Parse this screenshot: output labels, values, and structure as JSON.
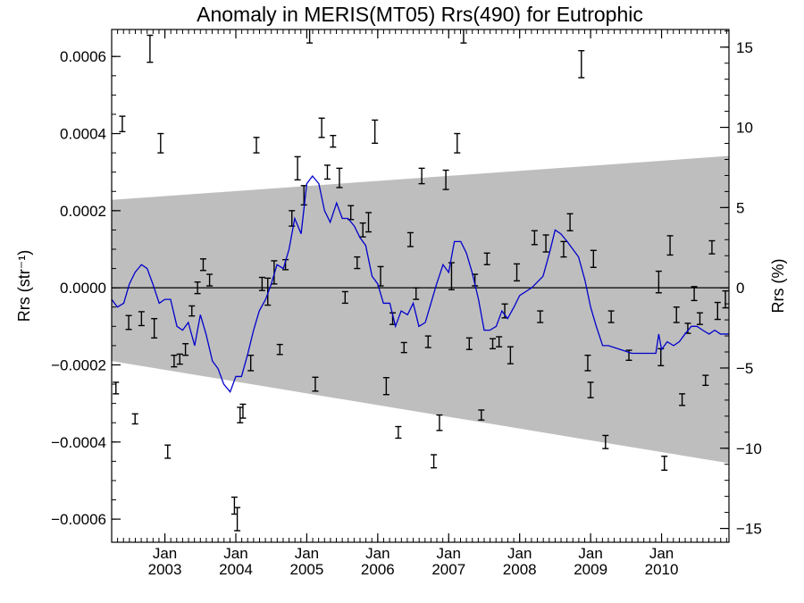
{
  "chart_data": {
    "type": "line",
    "title": "Anomaly in MERIS(MT05) Rrs(490) for Eutrophic",
    "ylabel_left": "Rrs (str⁻¹)",
    "ylabel_right": "Rrs (%)",
    "xlabel": "",
    "xlim": [
      2002.25,
      2010.95
    ],
    "ylim": [
      -0.00066,
      0.00067
    ],
    "ylim_right": [
      -15.86,
      16.1
    ],
    "grid": false,
    "legend": "none",
    "x_ticks": [
      {
        "x": 2003.0,
        "month": "Jan",
        "year": "2003"
      },
      {
        "x": 2004.0,
        "month": "Jan",
        "year": "2004"
      },
      {
        "x": 2005.0,
        "month": "Jan",
        "year": "2005"
      },
      {
        "x": 2006.0,
        "month": "Jan",
        "year": "2006"
      },
      {
        "x": 2007.0,
        "month": "Jan",
        "year": "2007"
      },
      {
        "x": 2008.0,
        "month": "Jan",
        "year": "2008"
      },
      {
        "x": 2009.0,
        "month": "Jan",
        "year": "2009"
      },
      {
        "x": 2010.0,
        "month": "Jan",
        "year": "2010"
      }
    ],
    "y_ticks_left": [
      {
        "v": 0.0006,
        "label": "0.0006"
      },
      {
        "v": 0.0004,
        "label": "0.0004"
      },
      {
        "v": 0.0002,
        "label": "0.0002"
      },
      {
        "v": 0.0,
        "label": "0.0000"
      },
      {
        "v": -0.0002,
        "label": "−0.0002"
      },
      {
        "v": -0.0004,
        "label": "−0.0004"
      },
      {
        "v": -0.0006,
        "label": "−0.0006"
      }
    ],
    "y_ticks_right": [
      {
        "v": 15,
        "label": "15"
      },
      {
        "v": 10,
        "label": "10"
      },
      {
        "v": 5,
        "label": "5"
      },
      {
        "v": 0,
        "label": "0"
      },
      {
        "v": -5,
        "label": "−5"
      },
      {
        "v": -10,
        "label": "−10"
      },
      {
        "v": -15,
        "label": "−15"
      }
    ],
    "band": {
      "color": "#bebebe",
      "upper": [
        [
          2002.25,
          0.000228
        ],
        [
          2010.95,
          0.000342
        ]
      ],
      "lower": [
        [
          2002.25,
          -0.00019
        ],
        [
          2010.95,
          -0.000455
        ]
      ]
    },
    "zero_line": true,
    "series": [
      {
        "color": "#0000cc",
        "points": [
          [
            2002.25,
            -3e-05
          ],
          [
            2002.33,
            -5e-05
          ],
          [
            2002.42,
            -4e-05
          ],
          [
            2002.5,
            1e-05
          ],
          [
            2002.58,
            4e-05
          ],
          [
            2002.67,
            6e-05
          ],
          [
            2002.75,
            5e-05
          ],
          [
            2002.83,
            1e-05
          ],
          [
            2002.92,
            -4e-05
          ],
          [
            2003.0,
            -3e-05
          ],
          [
            2003.08,
            -3e-05
          ],
          [
            2003.17,
            -0.0001
          ],
          [
            2003.25,
            -0.00011
          ],
          [
            2003.33,
            -9e-05
          ],
          [
            2003.42,
            -0.00015
          ],
          [
            2003.5,
            -7e-05
          ],
          [
            2003.58,
            -0.00012
          ],
          [
            2003.67,
            -0.00019
          ],
          [
            2003.75,
            -0.00021
          ],
          [
            2003.83,
            -0.00025
          ],
          [
            2003.92,
            -0.00027
          ],
          [
            2004.0,
            -0.00023
          ],
          [
            2004.08,
            -0.00023
          ],
          [
            2004.17,
            -0.00017
          ],
          [
            2004.25,
            -0.00011
          ],
          [
            2004.33,
            -6e-05
          ],
          [
            2004.42,
            -3e-05
          ],
          [
            2004.5,
            1e-05
          ],
          [
            2004.58,
            6e-05
          ],
          [
            2004.67,
            5e-05
          ],
          [
            2004.75,
            0.0001
          ],
          [
            2004.83,
            0.00018
          ],
          [
            2004.92,
            0.00014
          ],
          [
            2005.0,
            0.00027
          ],
          [
            2005.08,
            0.00029
          ],
          [
            2005.17,
            0.00027
          ],
          [
            2005.25,
            0.0002
          ],
          [
            2005.33,
            0.00017
          ],
          [
            2005.42,
            0.00022
          ],
          [
            2005.5,
            0.00018
          ],
          [
            2005.58,
            0.00018
          ],
          [
            2005.67,
            0.00016
          ],
          [
            2005.75,
            0.00013
          ],
          [
            2005.83,
            0.00011
          ],
          [
            2005.92,
            3e-05
          ],
          [
            2006.0,
            1e-05
          ],
          [
            2006.08,
            -4e-05
          ],
          [
            2006.17,
            -4e-05
          ],
          [
            2006.25,
            -0.0001
          ],
          [
            2006.33,
            -6e-05
          ],
          [
            2006.42,
            -7e-05
          ],
          [
            2006.5,
            -4e-05
          ],
          [
            2006.58,
            -0.0001
          ],
          [
            2006.67,
            -9e-05
          ],
          [
            2006.75,
            -4e-05
          ],
          [
            2006.83,
            1e-05
          ],
          [
            2006.92,
            6e-05
          ],
          [
            2007.0,
            4e-05
          ],
          [
            2007.08,
            0.00012
          ],
          [
            2007.17,
            0.00012
          ],
          [
            2007.25,
            9e-05
          ],
          [
            2007.33,
            4e-05
          ],
          [
            2007.42,
            -3e-05
          ],
          [
            2007.5,
            -0.00011
          ],
          [
            2007.58,
            -0.00011
          ],
          [
            2007.67,
            -0.0001
          ],
          [
            2007.75,
            -6e-05
          ],
          [
            2007.83,
            -8e-05
          ],
          [
            2007.92,
            -5e-05
          ],
          [
            2008.0,
            -2e-05
          ],
          [
            2008.17,
            0.0
          ],
          [
            2008.33,
            3e-05
          ],
          [
            2008.42,
            9e-05
          ],
          [
            2008.5,
            0.00015
          ],
          [
            2008.58,
            0.00014
          ],
          [
            2008.67,
            0.00012
          ],
          [
            2008.75,
            0.0001
          ],
          [
            2008.83,
            8e-05
          ],
          [
            2008.92,
            2e-05
          ],
          [
            2009.0,
            -5e-05
          ],
          [
            2009.08,
            -0.0001
          ],
          [
            2009.17,
            -0.00015
          ],
          [
            2009.25,
            -0.00015
          ],
          [
            2009.42,
            -0.00016
          ],
          [
            2009.58,
            -0.00017
          ],
          [
            2009.75,
            -0.00017
          ],
          [
            2009.92,
            -0.00017
          ],
          [
            2009.96,
            -0.00012
          ],
          [
            2010.0,
            -0.00016
          ],
          [
            2010.08,
            -0.00014
          ],
          [
            2010.17,
            -0.00015
          ],
          [
            2010.25,
            -0.00014
          ],
          [
            2010.33,
            -0.00012
          ],
          [
            2010.42,
            -0.0001
          ],
          [
            2010.5,
            -0.0001
          ],
          [
            2010.58,
            -0.00011
          ],
          [
            2010.67,
            -0.00012
          ],
          [
            2010.75,
            -0.00011
          ],
          [
            2010.83,
            -0.00012
          ],
          [
            2010.95,
            -0.00012
          ]
        ]
      }
    ],
    "errorbar_color": "#000000",
    "errorbars": [
      [
        2002.31,
        -0.00026,
        1.5e-05
      ],
      [
        2002.4,
        0.000425,
        2e-05
      ],
      [
        2002.49,
        -9e-05,
        1.8e-05
      ],
      [
        2002.58,
        -0.00034,
        1.3e-05
      ],
      [
        2002.67,
        -8e-05,
        1.8e-05
      ],
      [
        2002.79,
        0.00062,
        3.5e-05
      ],
      [
        2002.85,
        -0.000105,
        2.5e-05
      ],
      [
        2002.94,
        0.000375,
        2.5e-05
      ],
      [
        2003.04,
        -0.000425,
        1.7e-05
      ],
      [
        2003.13,
        -0.00019,
        1.5e-05
      ],
      [
        2003.21,
        -0.000185,
        1.3e-05
      ],
      [
        2003.29,
        -0.00016,
        1.5e-05
      ],
      [
        2003.38,
        -6e-05,
        1.3e-05
      ],
      [
        2003.46,
        0.0,
        1.5e-05
      ],
      [
        2003.54,
        6e-05,
        1.5e-05
      ],
      [
        2003.63,
        2e-05,
        1.5e-05
      ],
      [
        2003.98,
        -0.000565,
        2.2e-05
      ],
      [
        2004.02,
        -0.0006,
        3e-05
      ],
      [
        2004.06,
        -0.00033,
        2e-05
      ],
      [
        2004.1,
        -0.00032,
        1.8e-05
      ],
      [
        2004.21,
        -0.000195,
        2e-05
      ],
      [
        2004.29,
        0.00037,
        2e-05
      ],
      [
        2004.37,
        1e-05,
        1.7e-05
      ],
      [
        2004.45,
        -1e-05,
        3.5e-05
      ],
      [
        2004.54,
        4e-05,
        3e-05
      ],
      [
        2004.62,
        -0.00016,
        1.3e-05
      ],
      [
        2004.7,
        6e-05,
        1.3e-05
      ],
      [
        2004.79,
        0.00018,
        2e-05
      ],
      [
        2004.87,
        0.00031,
        3e-05
      ],
      [
        2004.96,
        0.00024,
        2.5e-05
      ],
      [
        2005.04,
        0.00066,
        2.5e-05
      ],
      [
        2005.12,
        -0.00025,
        1.8e-05
      ],
      [
        2005.21,
        0.000415,
        2.5e-05
      ],
      [
        2005.29,
        0.0003,
        1.8e-05
      ],
      [
        2005.37,
        0.00038,
        1.5e-05
      ],
      [
        2005.46,
        0.000285,
        2.5e-05
      ],
      [
        2005.54,
        -2.5e-05,
        1.5e-05
      ],
      [
        2005.62,
        0.000195,
        1.8e-05
      ],
      [
        2005.71,
        6.5e-05,
        1.5e-05
      ],
      [
        2005.79,
        0.00015,
        1.8e-05
      ],
      [
        2005.87,
        0.00017,
        2.5e-05
      ],
      [
        2005.96,
        0.000405,
        3e-05
      ],
      [
        2006.04,
        3e-05,
        2.5e-05
      ],
      [
        2006.12,
        -0.000255,
        2.2e-05
      ],
      [
        2006.21,
        -8e-05,
        1.5e-05
      ],
      [
        2006.29,
        -0.000375,
        1.5e-05
      ],
      [
        2006.37,
        -0.000155,
        1.3e-05
      ],
      [
        2006.46,
        0.000125,
        1.8e-05
      ],
      [
        2006.54,
        -1.5e-05,
        1.5e-05
      ],
      [
        2006.62,
        0.00029,
        2e-05
      ],
      [
        2006.71,
        -0.00014,
        1.5e-05
      ],
      [
        2006.79,
        -0.00045,
        1.7e-05
      ],
      [
        2006.87,
        -0.00035,
        2e-05
      ],
      [
        2006.96,
        0.00028,
        2.5e-05
      ],
      [
        2007.04,
        3e-05,
        3.5e-05
      ],
      [
        2007.12,
        0.000375,
        2.5e-05
      ],
      [
        2007.21,
        0.00066,
        2.5e-05
      ],
      [
        2007.29,
        -0.000145,
        1.5e-05
      ],
      [
        2007.37,
        2e-05,
        1.5e-05
      ],
      [
        2007.46,
        -0.00033,
        1.3e-05
      ],
      [
        2007.54,
        7.5e-05,
        1.5e-05
      ],
      [
        2007.62,
        -0.000145,
        1.3e-05
      ],
      [
        2007.71,
        -0.00014,
        1.3e-05
      ],
      [
        2007.79,
        -6e-05,
        1.8e-05
      ],
      [
        2007.87,
        -0.000175,
        2.2e-05
      ],
      [
        2007.96,
        4e-05,
        2.2e-05
      ],
      [
        2008.21,
        0.00013,
        1.8e-05
      ],
      [
        2008.29,
        -7.5e-05,
        1.5e-05
      ],
      [
        2008.37,
        0.000115,
        2.2e-05
      ],
      [
        2008.62,
        0.0001,
        2e-05
      ],
      [
        2008.71,
        0.00017,
        2.2e-05
      ],
      [
        2008.87,
        0.00058,
        3.5e-05
      ],
      [
        2008.96,
        -0.000195,
        2e-05
      ],
      [
        2009.0,
        -0.000265,
        2e-05
      ],
      [
        2009.04,
        7.5e-05,
        2.2e-05
      ],
      [
        2009.21,
        -0.0004,
        1.7e-05
      ],
      [
        2009.29,
        -7.5e-05,
        1.5e-05
      ],
      [
        2009.54,
        -0.000175,
        1.3e-05
      ],
      [
        2009.96,
        1.5e-05,
        2.8e-05
      ],
      [
        2009.99,
        -0.00018,
        2.2e-05
      ],
      [
        2010.04,
        -0.000455,
        1.8e-05
      ],
      [
        2010.12,
        0.00011,
        2.5e-05
      ],
      [
        2010.21,
        -7e-05,
        2e-05
      ],
      [
        2010.29,
        -0.00029,
        1.5e-05
      ],
      [
        2010.37,
        -0.000105,
        1.3e-05
      ],
      [
        2010.46,
        -1.5e-05,
        1.8e-05
      ],
      [
        2010.54,
        -8e-05,
        1.5e-05
      ],
      [
        2010.62,
        -0.00024,
        1.3e-05
      ],
      [
        2010.71,
        0.000105,
        1.7e-05
      ],
      [
        2010.79,
        -6e-05,
        2.2e-05
      ],
      [
        2010.9,
        -3e-05,
        2.2e-05
      ]
    ]
  }
}
